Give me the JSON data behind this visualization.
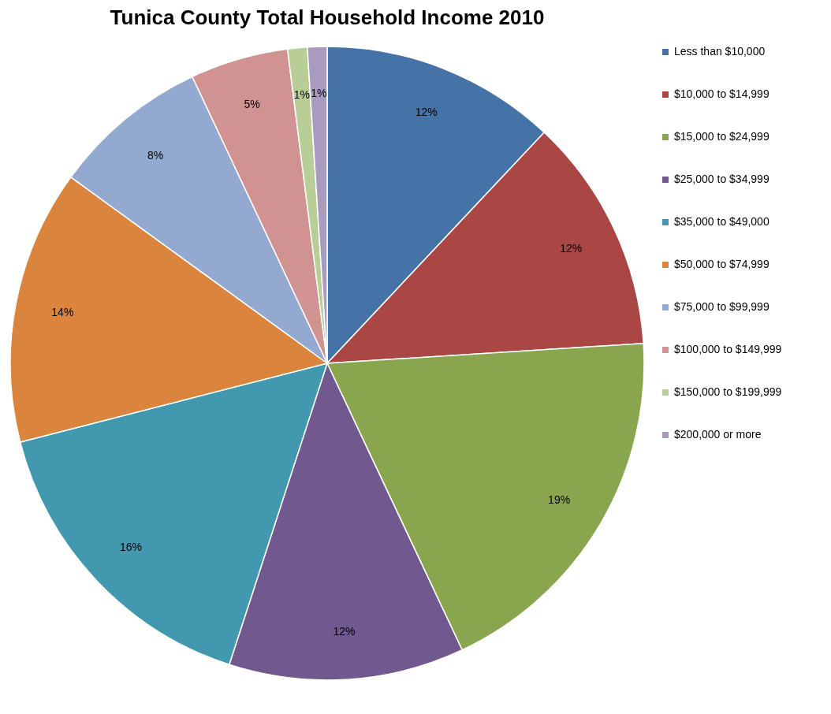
{
  "chart_data": {
    "type": "pie",
    "title": "Tunica County Total Household Income 2010",
    "categories": [
      "Less than $10,000",
      "$10,000 to $14,999",
      "$15,000 to $24,999",
      "$25,000  to $34,999",
      "$35,000 to $49,000",
      "$50,000 to $74,999",
      "$75,000 to $99,999",
      "$100,000 to $149,999",
      "$150,000 to $199,999",
      "$200,000 or more"
    ],
    "values": [
      12,
      12,
      19,
      12,
      16,
      14,
      8,
      5,
      1,
      1
    ],
    "colors": [
      "#4572a7",
      "#aa4643",
      "#89a54e",
      "#71588f",
      "#4198af",
      "#db843d",
      "#93a9cf",
      "#d19392",
      "#b9cd96",
      "#a99bbd"
    ],
    "value_labels": [
      "12%",
      "12%",
      "19%",
      "12%",
      "16%",
      "14%",
      "8%",
      "5%",
      "1%",
      "1%"
    ],
    "legend": "right"
  }
}
